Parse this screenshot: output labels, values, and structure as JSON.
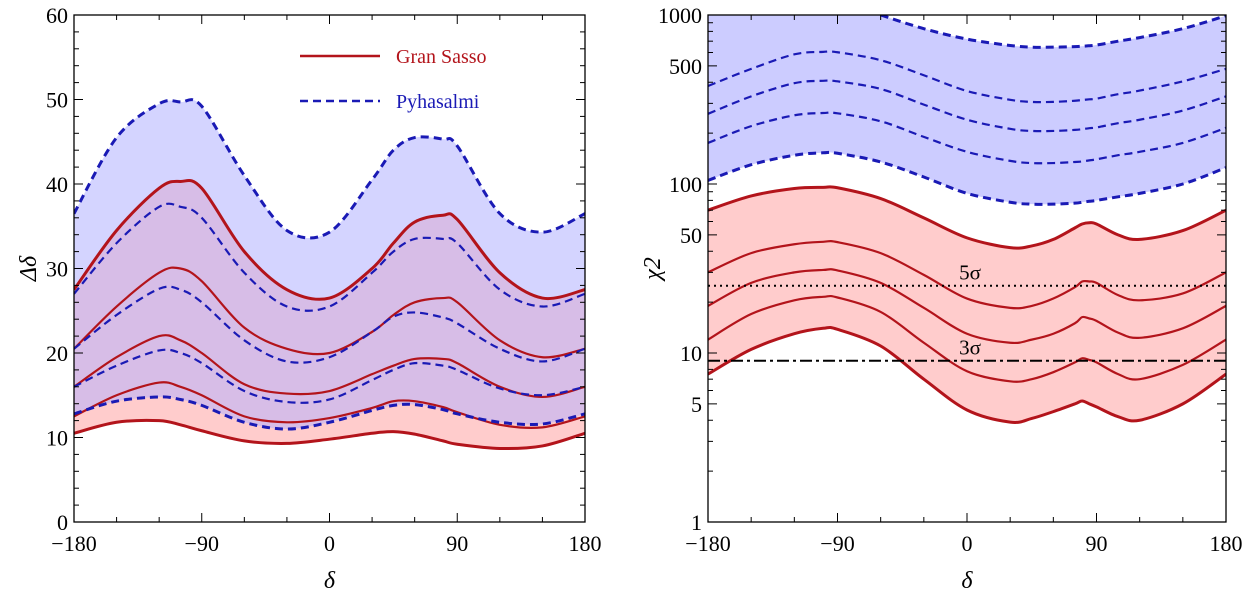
{
  "colors": {
    "gran_sasso": "#b3141b",
    "pyhasalmi": "#1a1ab5",
    "gran_sasso_fill": "#ffcccc",
    "pyhasalmi_fill": "#ccccff",
    "overlap_fill": "#d8b0d8"
  },
  "chart_data": [
    {
      "type": "line",
      "xlabel": "δ",
      "ylabel": "Δδ",
      "xlim": [
        -180,
        180
      ],
      "ylim": [
        0,
        60
      ],
      "x_ticks": [
        -180,
        -90,
        0,
        90,
        180
      ],
      "x_tick_labels": [
        "−180",
        "−90",
        "0",
        "90",
        "180"
      ],
      "y_ticks": [
        0,
        10,
        20,
        30,
        40,
        50,
        60
      ],
      "y_tick_labels": [
        "0",
        "10",
        "20",
        "30",
        "40",
        "50",
        "60"
      ],
      "legend": {
        "placement": "top-right",
        "entries": [
          {
            "label": "Gran Sasso",
            "style": "solid",
            "color": "#b3141b"
          },
          {
            "label": "Pyhasalmi",
            "style": "dashed",
            "color": "#1a1ab5"
          }
        ]
      },
      "x": [
        -180,
        -150,
        -120,
        -105,
        -90,
        -60,
        -30,
        0,
        30,
        45,
        60,
        80,
        90,
        120,
        150,
        180
      ],
      "series": [
        {
          "name": "Gran Sasso",
          "curve": 1,
          "style": "solid",
          "values": [
            10.5,
            11.8,
            12.0,
            11.5,
            10.8,
            9.6,
            9.3,
            9.8,
            10.5,
            10.7,
            10.4,
            9.6,
            9.2,
            8.7,
            9.0,
            10.5
          ]
        },
        {
          "name": "Gran Sasso",
          "curve": 2,
          "style": "solid",
          "values": [
            12.5,
            15.0,
            16.5,
            16.0,
            15.0,
            12.5,
            11.8,
            12.3,
            13.5,
            14.3,
            14.3,
            13.6,
            13.0,
            11.5,
            11.2,
            12.5
          ]
        },
        {
          "name": "Gran Sasso",
          "curve": 3,
          "style": "solid",
          "values": [
            16.0,
            19.5,
            22.0,
            21.5,
            20.0,
            16.3,
            15.2,
            15.5,
            17.5,
            18.5,
            19.3,
            19.3,
            18.8,
            16.0,
            14.8,
            16.0
          ]
        },
        {
          "name": "Gran Sasso",
          "curve": 4,
          "style": "solid",
          "values": [
            20.5,
            25.5,
            29.5,
            30.0,
            28.5,
            23.0,
            20.5,
            20.0,
            22.5,
            24.5,
            26.0,
            26.5,
            26.0,
            21.5,
            19.5,
            20.5
          ]
        },
        {
          "name": "Gran Sasso",
          "curve": 5,
          "style": "solid",
          "values": [
            27.5,
            34.5,
            39.5,
            40.3,
            39.5,
            32.0,
            27.5,
            26.5,
            30.0,
            33.0,
            35.5,
            36.3,
            35.8,
            29.5,
            26.5,
            27.5
          ]
        },
        {
          "name": "Pyhasalmi",
          "curve": 1,
          "style": "dashed",
          "values": [
            12.8,
            14.3,
            14.8,
            14.5,
            13.8,
            11.8,
            11.0,
            11.8,
            13.2,
            13.8,
            13.9,
            13.3,
            12.8,
            11.8,
            11.6,
            12.8
          ]
        },
        {
          "name": "Pyhasalmi",
          "curve": 2,
          "style": "dashed",
          "values": [
            16.0,
            18.5,
            20.3,
            20.0,
            18.8,
            15.5,
            14.2,
            14.5,
            16.8,
            18.0,
            18.8,
            18.5,
            18.0,
            15.8,
            15.0,
            16.0
          ]
        },
        {
          "name": "Pyhasalmi",
          "curve": 3,
          "style": "dashed",
          "values": [
            20.5,
            24.5,
            27.6,
            27.5,
            26.0,
            21.5,
            19.0,
            19.5,
            22.5,
            24.3,
            24.8,
            24.2,
            23.5,
            20.5,
            19.0,
            20.5
          ]
        },
        {
          "name": "Pyhasalmi",
          "curve": 4,
          "style": "dashed",
          "values": [
            27.0,
            33.0,
            37.3,
            37.3,
            36.0,
            29.5,
            25.5,
            25.5,
            29.5,
            32.0,
            33.5,
            33.5,
            33.0,
            27.5,
            25.5,
            27.0
          ]
        },
        {
          "name": "Pyhasalmi",
          "curve": 5,
          "style": "dashed",
          "values": [
            36.5,
            45.5,
            49.5,
            49.7,
            49.2,
            41.0,
            34.5,
            34.3,
            40.5,
            44.0,
            45.5,
            45.3,
            44.5,
            36.5,
            34.3,
            36.5
          ]
        }
      ]
    },
    {
      "type": "line",
      "xlabel": "δ",
      "ylabel": "χ2",
      "y_scale": "log",
      "xlim": [
        -180,
        180
      ],
      "ylim": [
        1,
        1000
      ],
      "x_ticks": [
        -180,
        -90,
        0,
        90,
        180
      ],
      "x_tick_labels": [
        "−180",
        "−90",
        "0",
        "90",
        "180"
      ],
      "y_ticks": [
        1,
        5,
        10,
        50,
        100,
        500,
        1000
      ],
      "y_tick_labels": [
        "1",
        "5",
        "10",
        "50",
        "100",
        "500",
        "1000"
      ],
      "annotations": [
        {
          "label": "5σ",
          "y": 25,
          "style": "dotted"
        },
        {
          "label": "3σ",
          "y": 9,
          "style": "dash-dot"
        }
      ],
      "x": [
        -180,
        -150,
        -120,
        -100,
        -90,
        -60,
        -30,
        0,
        30,
        45,
        60,
        75,
        80,
        85,
        90,
        105,
        120,
        150,
        180
      ],
      "series": [
        {
          "name": "Gran Sasso",
          "curve": 1,
          "style": "solid",
          "values": [
            7.5,
            10.5,
            13.0,
            14.0,
            13.8,
            11.0,
            7.0,
            4.6,
            3.9,
            4.1,
            4.5,
            5.0,
            5.2,
            5.0,
            4.8,
            4.2,
            4.0,
            5.0,
            7.5
          ]
        },
        {
          "name": "Gran Sasso",
          "curve": 2,
          "style": "solid",
          "values": [
            12.0,
            17.0,
            20.5,
            21.5,
            21.3,
            17.5,
            11.5,
            7.8,
            6.8,
            7.0,
            7.7,
            8.8,
            9.3,
            9.1,
            8.8,
            7.5,
            7.0,
            8.5,
            12.0
          ]
        },
        {
          "name": "Gran Sasso",
          "curve": 3,
          "style": "solid",
          "values": [
            19.0,
            26.0,
            30.0,
            31.0,
            30.8,
            26.0,
            18.5,
            13.0,
            11.5,
            12.0,
            13.0,
            15.0,
            16.3,
            16.0,
            15.5,
            13.2,
            12.3,
            14.0,
            19.0
          ]
        },
        {
          "name": "Gran Sasso",
          "curve": 4,
          "style": "solid",
          "values": [
            30.0,
            39.0,
            44.0,
            45.5,
            45.3,
            39.0,
            29.0,
            21.0,
            18.5,
            19.0,
            21.0,
            24.5,
            26.5,
            26.5,
            26.0,
            22.0,
            20.5,
            22.5,
            30.0
          ]
        },
        {
          "name": "Gran Sasso",
          "curve": 5,
          "style": "solid",
          "values": [
            70.0,
            85.0,
            94.0,
            95.5,
            95.0,
            82.0,
            63.0,
            48.0,
            42.0,
            43.0,
            47.0,
            55.0,
            58.0,
            59.0,
            58.0,
            50.0,
            47.0,
            53.0,
            70.0
          ]
        },
        {
          "name": "Pyhasalmi",
          "curve": 1,
          "style": "dashed",
          "values": [
            105.0,
            130.0,
            148.0,
            153.0,
            152.0,
            135.0,
            110.0,
            88.0,
            78.0,
            76.0,
            76.0,
            77.0,
            78.0,
            79.0,
            80.0,
            84.0,
            88.0,
            100.0,
            125.0
          ]
        },
        {
          "name": "Pyhasalmi",
          "curve": 2,
          "style": "dashed",
          "values": [
            175.0,
            220.0,
            255.0,
            263.0,
            262.0,
            235.0,
            190.0,
            155.0,
            137.0,
            133.0,
            133.0,
            135.0,
            136.0,
            138.0,
            140.0,
            148.0,
            155.0,
            175.0,
            215.0
          ]
        },
        {
          "name": "Pyhasalmi",
          "curve": 3,
          "style": "dashed",
          "values": [
            260.0,
            330.0,
            395.0,
            408.0,
            405.0,
            365.0,
            295.0,
            240.0,
            212.0,
            206.0,
            206.0,
            209.0,
            211.0,
            214.0,
            216.0,
            229.0,
            240.0,
            272.0,
            330.0
          ]
        },
        {
          "name": "Pyhasalmi",
          "curve": 4,
          "style": "dashed",
          "values": [
            380.0,
            480.0,
            585.0,
            605.0,
            602.0,
            540.0,
            440.0,
            355.0,
            315.0,
            306.0,
            306.0,
            311.0,
            314.0,
            317.0,
            320.0,
            340.0,
            357.0,
            405.0,
            480.0
          ]
        },
        {
          "name": "Pyhasalmi",
          "curve": 5,
          "style": "dashed",
          "values": [
            null,
            null,
            null,
            null,
            null,
            1000.0,
            830.0,
            720.0,
            660.0,
            645.0,
            645.0,
            650.0,
            653.0,
            658.0,
            664.0,
            700.0,
            735.0,
            830.0,
            990.0
          ]
        }
      ]
    }
  ]
}
